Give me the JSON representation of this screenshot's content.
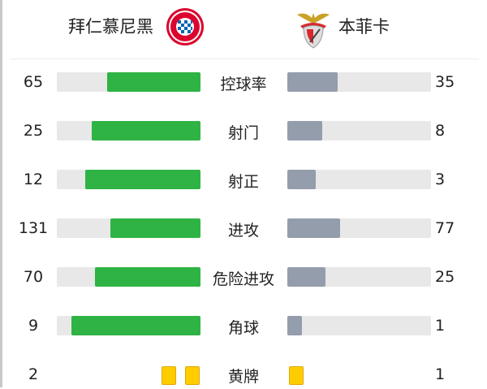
{
  "home": {
    "name": "拜仁慕尼黑",
    "logo": "fc-bayern-munchen-logo",
    "color": "#2fb344"
  },
  "away": {
    "name": "本菲卡",
    "logo": "benfica-logo",
    "color": "#949dac"
  },
  "stats": [
    {
      "label": "控球率",
      "home": "65",
      "away": "35",
      "home_frac": 0.65,
      "away_frac": 0.35
    },
    {
      "label": "射门",
      "home": "25",
      "away": "8",
      "home_frac": 0.758,
      "away_frac": 0.242
    },
    {
      "label": "射正",
      "home": "12",
      "away": "3",
      "home_frac": 0.8,
      "away_frac": 0.2
    },
    {
      "label": "进攻",
      "home": "131",
      "away": "77",
      "home_frac": 0.63,
      "away_frac": 0.37
    },
    {
      "label": "危险进攻",
      "home": "70",
      "away": "25",
      "home_frac": 0.737,
      "away_frac": 0.263
    },
    {
      "label": "角球",
      "home": "9",
      "away": "1",
      "home_frac": 0.9,
      "away_frac": 0.1
    }
  ],
  "cards": {
    "label": "黄牌",
    "home": "2",
    "away": "1",
    "home_count": 2,
    "away_count": 1,
    "color": "#ffcc00"
  }
}
